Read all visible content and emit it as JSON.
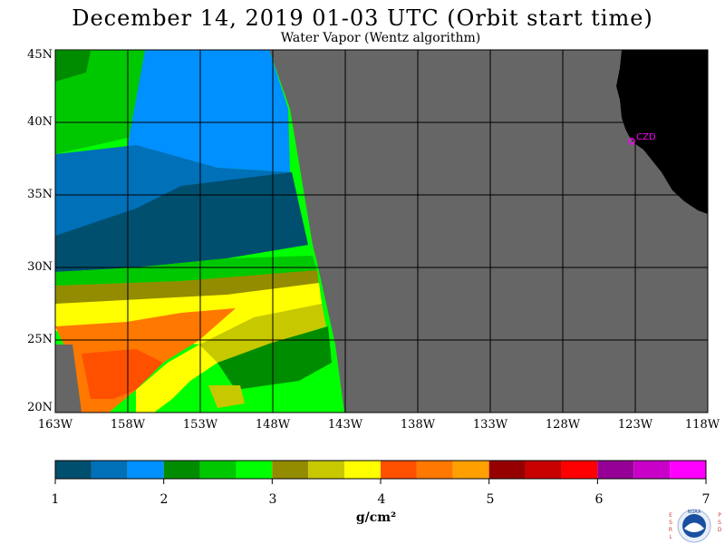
{
  "header": {
    "title": "December 14, 2019  01-03 UTC  (Orbit start time)",
    "subtitle": "Water Vapor (Wentz algorithm)"
  },
  "map": {
    "lat_labels": [
      "45N",
      "40N",
      "35N",
      "30N",
      "25N",
      "20N"
    ],
    "lon_labels": [
      "163W",
      "158W",
      "153W",
      "148W",
      "143W",
      "138W",
      "133W",
      "128W",
      "123W",
      "118W"
    ],
    "station_label": "CZD",
    "land_color": "#000000",
    "no_data_color": "#666666"
  },
  "colorbar": {
    "ticks": [
      "1",
      "2",
      "3",
      "4",
      "5",
      "6",
      "7"
    ],
    "unit": "g/cm²",
    "colors": [
      "#004f6e",
      "#0070b8",
      "#0090ff",
      "#008c00",
      "#00c800",
      "#00ff00",
      "#948c00",
      "#c8c800",
      "#ffff00",
      "#ff5000",
      "#ff7800",
      "#ffa000",
      "#960000",
      "#c80000",
      "#ff0000",
      "#960096",
      "#c800c8",
      "#ff00ff"
    ]
  },
  "logo": {
    "left_text": "ESRL",
    "right_text": "PSD",
    "center_text": "NOAA"
  }
}
